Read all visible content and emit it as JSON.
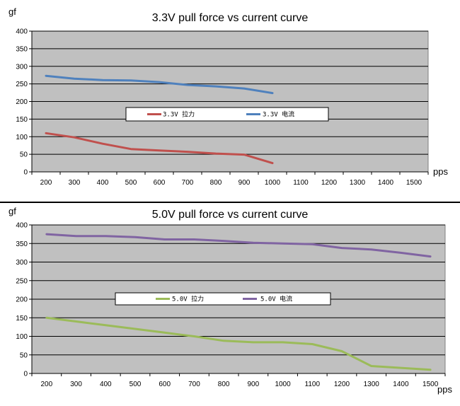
{
  "chart_data": [
    {
      "type": "line",
      "title": "3.3V pull force vs current curve",
      "ylabel": "gf",
      "xlabel": "pps",
      "categories": [
        200,
        300,
        400,
        500,
        600,
        700,
        800,
        900,
        1000,
        1100,
        1200,
        1300,
        1400,
        1500
      ],
      "ylim": [
        0,
        400
      ],
      "yticks": [
        0,
        50,
        100,
        150,
        200,
        250,
        300,
        350,
        400
      ],
      "grid": true,
      "legend_position": "center",
      "series": [
        {
          "name": "3.3V 拉力",
          "color": "#C0504D",
          "values": [
            110,
            98,
            80,
            65,
            61,
            57,
            52,
            49,
            25,
            null,
            null,
            null,
            null,
            null
          ]
        },
        {
          "name": "3.3V 电流",
          "color": "#4F81BD",
          "values": [
            273,
            265,
            261,
            260,
            255,
            247,
            243,
            237,
            224,
            null,
            null,
            null,
            null,
            null
          ]
        }
      ]
    },
    {
      "type": "line",
      "title": "5.0V pull force vs current curve",
      "ylabel": "gf",
      "xlabel": "pps",
      "categories": [
        200,
        300,
        400,
        500,
        600,
        700,
        800,
        900,
        1000,
        1100,
        1200,
        1300,
        1400,
        1500
      ],
      "ylim": [
        0,
        400
      ],
      "yticks": [
        0,
        50,
        100,
        150,
        200,
        250,
        300,
        350,
        400
      ],
      "grid": true,
      "legend_position": "center",
      "series": [
        {
          "name": "5.0V 拉力",
          "color": "#9BBB59",
          "values": [
            150,
            140,
            130,
            120,
            110,
            100,
            88,
            84,
            84,
            79,
            60,
            20,
            15,
            10
          ]
        },
        {
          "name": "5.0V 电流",
          "color": "#8064A2",
          "values": [
            375,
            370,
            370,
            367,
            361,
            361,
            357,
            352,
            350,
            348,
            338,
            334,
            325,
            315
          ]
        }
      ]
    }
  ]
}
